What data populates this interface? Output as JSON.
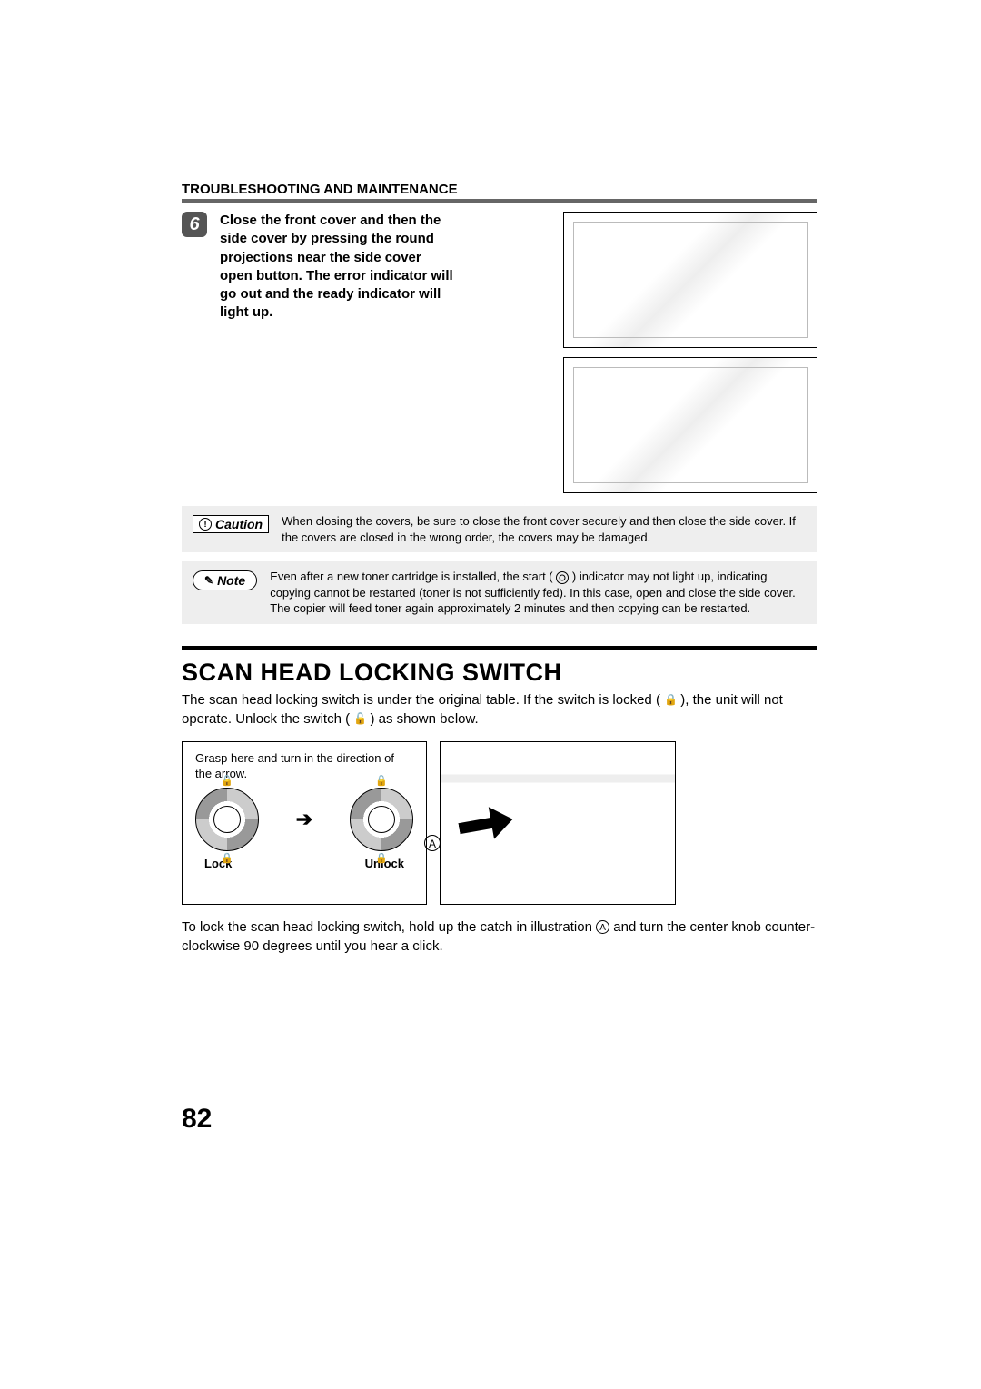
{
  "header": {
    "title": "TROUBLESHOOTING AND MAINTENANCE"
  },
  "step": {
    "number": "6",
    "text": "Close the front cover and then the side cover by pressing the round projections near the side cover open button. The error indicator will go out and the ready indicator will light up."
  },
  "caution": {
    "label": "Caution",
    "body": "When closing the covers, be sure to close the front cover securely and then close the side cover. If the covers are closed in the wrong order, the covers may be damaged."
  },
  "note": {
    "label": "Note",
    "body_before": "Even after a new toner cartridge is installed, the start (",
    "body_after": ") indicator may not light up, indicating copying cannot be restarted (toner is not sufficiently fed). In this case, open and close the side cover. The copier will feed toner again approximately 2 minutes and then copying can be restarted."
  },
  "section": {
    "title": "SCAN HEAD LOCKING SWITCH",
    "intro_before_lock": "The scan head locking switch is under the original table. If the switch is locked (",
    "intro_mid": "), the unit will not operate. Unlock the switch (",
    "intro_after": ") as shown below."
  },
  "switch": {
    "hint": "Grasp here and turn in the direction of the arrow.",
    "lock_label": "Lock",
    "unlock_label": "Unlock",
    "circle_label": "A"
  },
  "footer": {
    "text_before": "To lock the scan head locking switch, hold up the catch in illustration ",
    "text_after": " and turn the center knob counter-clockwise 90 degrees until you hear a click."
  },
  "page_number": "82",
  "colors": {
    "text": "#000000",
    "rule_grey": "#666666",
    "step_bg": "#555555",
    "callout_bg": "#eeeeee",
    "page_bg": "#ffffff"
  }
}
